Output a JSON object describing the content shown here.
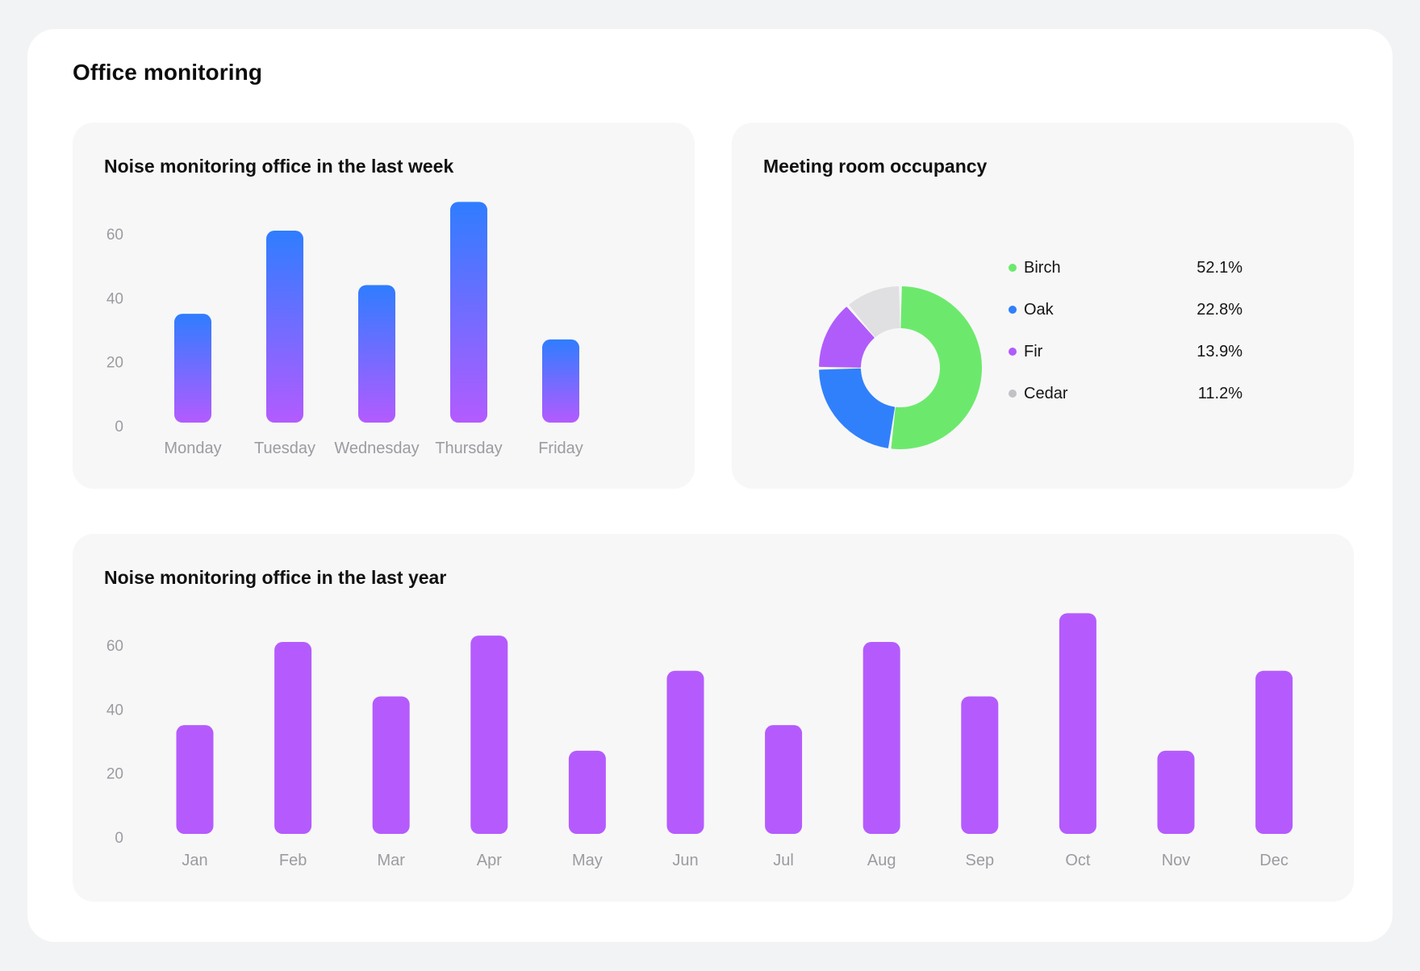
{
  "page": {
    "title": "Office monitoring"
  },
  "chart_data": [
    {
      "id": "week",
      "type": "bar",
      "title": "Noise monitoring office in the last week",
      "categories": [
        "Monday",
        "Tuesday",
        "Wednesday",
        "Thursday",
        "Friday"
      ],
      "values": [
        35,
        61,
        44,
        70,
        27
      ],
      "yticks": [
        0,
        20,
        40,
        60
      ],
      "ylim": [
        0,
        60
      ],
      "fill": "gradient",
      "colors": {
        "top": "#2f7dff",
        "bottom": "#b35bff"
      },
      "xlabel": "",
      "ylabel": "",
      "grid": false
    },
    {
      "id": "rooms",
      "type": "pie",
      "title": "Meeting room occupancy",
      "labels": [
        "Birch",
        "Oak",
        "Fir",
        "Cedar"
      ],
      "values": [
        52.1,
        22.8,
        13.9,
        11.2
      ],
      "display": [
        "52.1%",
        "22.8%",
        "13.9%",
        "11.2%"
      ],
      "colors": [
        "#6ce96c",
        "#3180fb",
        "#b05cfb",
        "#e0e0e2"
      ],
      "legend": "right"
    },
    {
      "id": "year",
      "type": "bar",
      "title": "Noise monitoring office in the last year",
      "categories": [
        "Jan",
        "Feb",
        "Mar",
        "Apr",
        "May",
        "Jun",
        "Jul",
        "Aug",
        "Sep",
        "Oct",
        "Nov",
        "Dec"
      ],
      "values": [
        35,
        61,
        44,
        63,
        27,
        52,
        35,
        61,
        44,
        70,
        27,
        52
      ],
      "yticks": [
        0,
        20,
        40,
        60
      ],
      "ylim": [
        0,
        60
      ],
      "fill": "solid",
      "colors": {
        "bar": "#b55bfd"
      },
      "xlabel": "",
      "ylabel": "",
      "grid": false
    }
  ]
}
